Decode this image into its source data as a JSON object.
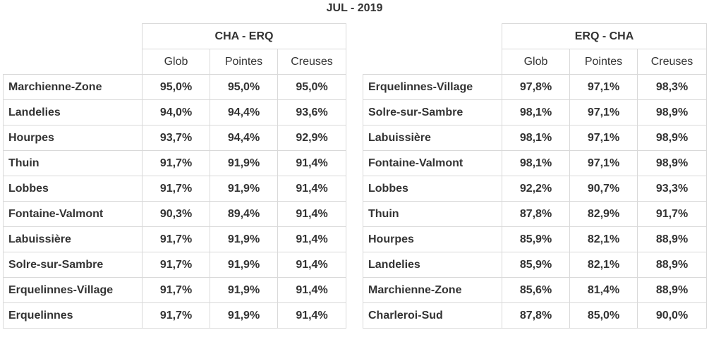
{
  "title": "JUL - 2019",
  "tables": [
    {
      "group_header": "CHA - ERQ",
      "columns": [
        "Glob",
        "Pointes",
        "Creuses"
      ],
      "rows": [
        {
          "name": "Marchienne-Zone",
          "glob": "95,0%",
          "pointes": "95,0%",
          "creuses": "95,0%"
        },
        {
          "name": "Landelies",
          "glob": "94,0%",
          "pointes": "94,4%",
          "creuses": "93,6%"
        },
        {
          "name": "Hourpes",
          "glob": "93,7%",
          "pointes": "94,4%",
          "creuses": "92,9%"
        },
        {
          "name": "Thuin",
          "glob": "91,7%",
          "pointes": "91,9%",
          "creuses": "91,4%"
        },
        {
          "name": "Lobbes",
          "glob": "91,7%",
          "pointes": "91,9%",
          "creuses": "91,4%"
        },
        {
          "name": "Fontaine-Valmont",
          "glob": "90,3%",
          "pointes": "89,4%",
          "creuses": "91,4%"
        },
        {
          "name": "Labuissière",
          "glob": "91,7%",
          "pointes": "91,9%",
          "creuses": "91,4%"
        },
        {
          "name": "Solre-sur-Sambre",
          "glob": "91,7%",
          "pointes": "91,9%",
          "creuses": "91,4%"
        },
        {
          "name": "Erquelinnes-Village",
          "glob": "91,7%",
          "pointes": "91,9%",
          "creuses": "91,4%"
        },
        {
          "name": "Erquelinnes",
          "glob": "91,7%",
          "pointes": "91,9%",
          "creuses": "91,4%"
        }
      ]
    },
    {
      "group_header": "ERQ - CHA",
      "columns": [
        "Glob",
        "Pointes",
        "Creuses"
      ],
      "rows": [
        {
          "name": "Erquelinnes-Village",
          "glob": "97,8%",
          "pointes": "97,1%",
          "creuses": "98,3%"
        },
        {
          "name": "Solre-sur-Sambre",
          "glob": "98,1%",
          "pointes": "97,1%",
          "creuses": "98,9%"
        },
        {
          "name": "Labuissière",
          "glob": "98,1%",
          "pointes": "97,1%",
          "creuses": "98,9%"
        },
        {
          "name": "Fontaine-Valmont",
          "glob": "98,1%",
          "pointes": "97,1%",
          "creuses": "98,9%"
        },
        {
          "name": "Lobbes",
          "glob": "92,2%",
          "pointes": "90,7%",
          "creuses": "93,3%"
        },
        {
          "name": "Thuin",
          "glob": "87,8%",
          "pointes": "82,9%",
          "creuses": "91,7%"
        },
        {
          "name": "Hourpes",
          "glob": "85,9%",
          "pointes": "82,1%",
          "creuses": "88,9%"
        },
        {
          "name": "Landelies",
          "glob": "85,9%",
          "pointes": "82,1%",
          "creuses": "88,9%"
        },
        {
          "name": "Marchienne-Zone",
          "glob": "85,6%",
          "pointes": "81,4%",
          "creuses": "88,9%"
        },
        {
          "name": "Charleroi-Sud",
          "glob": "87,8%",
          "pointes": "85,0%",
          "creuses": "90,0%"
        }
      ]
    }
  ]
}
